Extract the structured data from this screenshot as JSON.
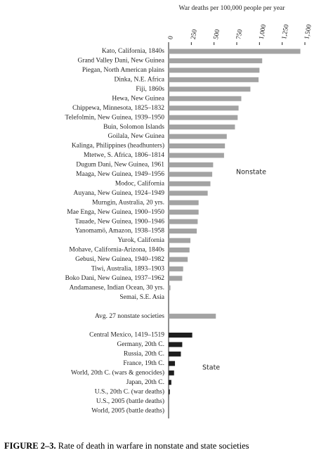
{
  "chart_data": {
    "type": "barh",
    "title": "War deaths per 100,000 people per year",
    "categories": [
      "Kato, California, 1840s",
      "Grand Valley Dani, New Guinea",
      "Piegan, North American plains",
      "Dinka, N.E. Africa",
      "Fiji, 1860s",
      "Hewa, New Guinea",
      "Chippewa, Minnesota, 1825–1832",
      "Telefolmin, New Guinea, 1939–1950",
      "Buin, Solomon Islands",
      "Goilala, New Guinea",
      "Kalinga, Philippines (headhunters)",
      "Mtetwe, S. Africa, 1806–1814",
      "Dugum Dani, New Guinea, 1961",
      "Maaga, New Guinea, 1949–1956",
      "Modoc, California",
      "Auyana, New Guinea, 1924–1949",
      "Murngin, Australia, 20 yrs.",
      "Mae Enga, New Guinea, 1900–1950",
      "Tauade, New Guinea, 1900–1946",
      "Yanomamö, Amazon, 1938–1958",
      "Yurok, California",
      "Mohave, California-Arizona, 1840s",
      "Gebusi, New Guinea, 1940–1982",
      "Tiwi, Australia, 1893–1903",
      "Boko Dani, New Guinea, 1937–1962",
      "Andamanese, Indian Ocean, 30 yrs.",
      "Semai, S.E. Asia",
      null,
      "Avg. 27 nonstate societies",
      null,
      "Central Mexico, 1419–1519",
      "Germany, 20th C.",
      "Russia, 20th C.",
      "France, 19th C.",
      "World, 20th C. (wars & genocides)",
      "Japan, 20th C.",
      "U.S., 20th C. (war deaths)",
      "U.S., 2005 (battle deaths)",
      "World, 2005 (battle deaths)"
    ],
    "series": [
      {
        "name": "Nonstate",
        "color": "#a3a3a3",
        "values": [
          1450,
          1030,
          1000,
          990,
          900,
          800,
          770,
          760,
          730,
          640,
          620,
          610,
          490,
          480,
          460,
          430,
          330,
          330,
          320,
          310,
          240,
          230,
          210,
          160,
          150,
          20,
          0,
          null,
          520,
          null,
          null,
          null,
          null,
          null,
          null,
          null,
          null,
          null,
          null
        ]
      },
      {
        "name": "State",
        "color": "#1e1e1e",
        "values": [
          null,
          null,
          null,
          null,
          null,
          null,
          null,
          null,
          null,
          null,
          null,
          null,
          null,
          null,
          null,
          null,
          null,
          null,
          null,
          null,
          null,
          null,
          null,
          null,
          null,
          null,
          null,
          null,
          null,
          null,
          260,
          150,
          135,
          70,
          60,
          30,
          13,
          1,
          0
        ]
      }
    ],
    "xlim": [
      0,
      1500
    ],
    "xticks": [
      0,
      250,
      500,
      750,
      {
        "value": 1000,
        "label": "1,000"
      },
      {
        "value": 1250,
        "label": "1,250"
      },
      {
        "value": 1500,
        "label": "1,500"
      }
    ],
    "figure_label": "FIGURE 2–3.",
    "caption": "Rate of death in warfare in nonstate and state societies"
  }
}
